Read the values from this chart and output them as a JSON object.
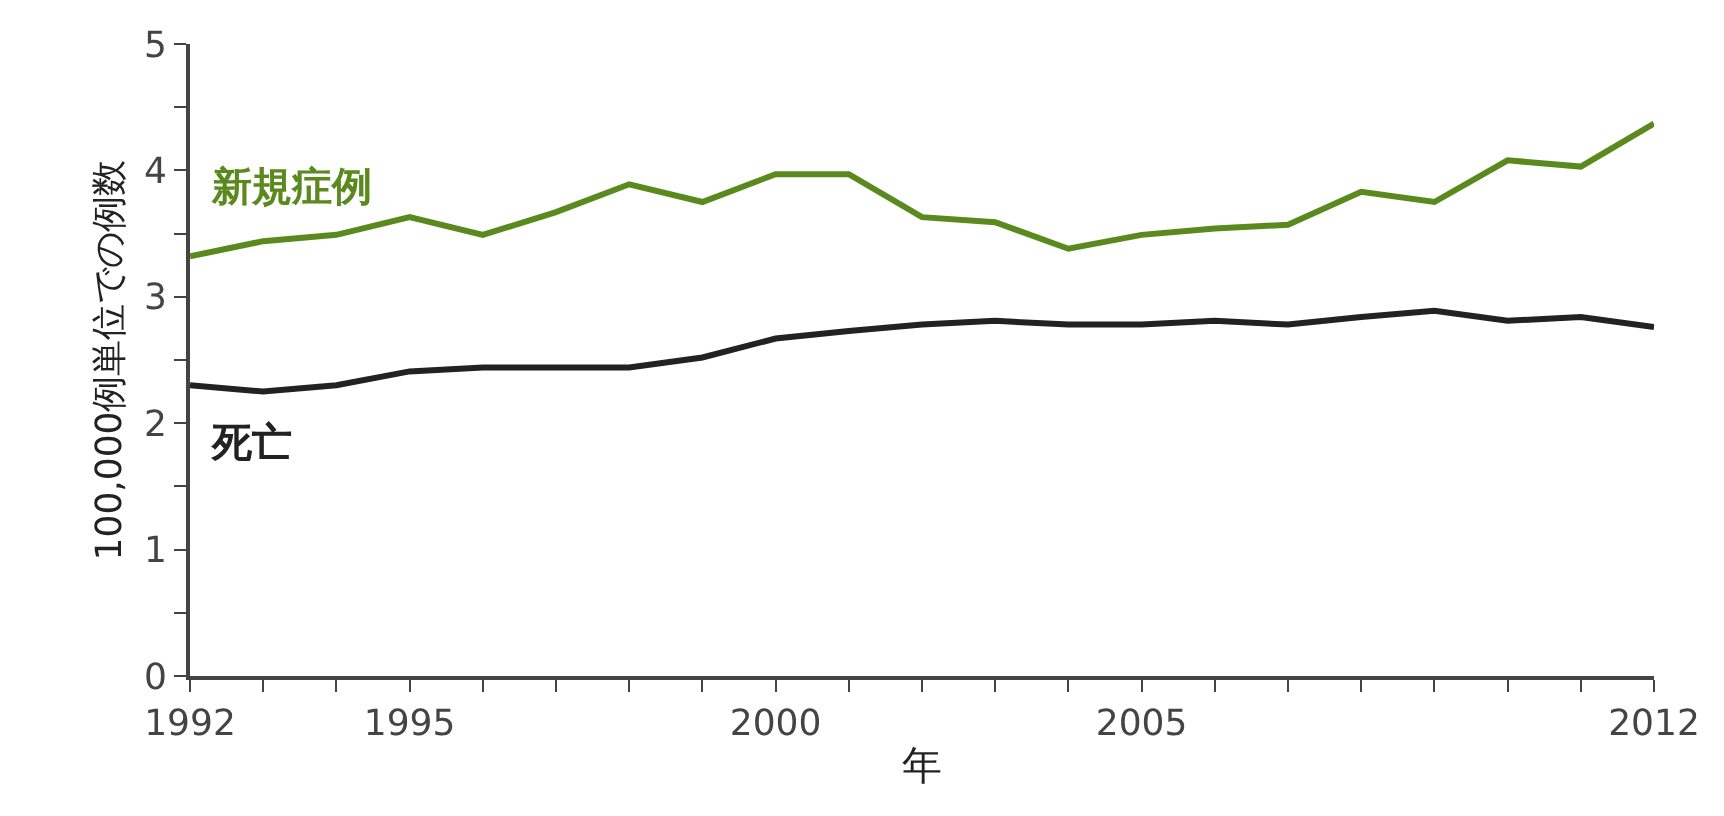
{
  "chart_data": {
    "type": "line",
    "xlabel": "年",
    "ylabel": "100,000例単位での例数",
    "x": [
      1992,
      1993,
      1994,
      1995,
      1996,
      1997,
      1998,
      1999,
      2000,
      2001,
      2002,
      2003,
      2004,
      2005,
      2006,
      2007,
      2008,
      2009,
      2010,
      2011,
      2012
    ],
    "series": [
      {
        "name": "新規症例",
        "color": "#5a8a1e",
        "values": [
          3.32,
          3.44,
          3.49,
          3.63,
          3.49,
          3.67,
          3.89,
          3.75,
          3.97,
          3.97,
          3.63,
          3.59,
          3.38,
          3.49,
          3.54,
          3.57,
          3.83,
          3.75,
          4.08,
          4.03,
          4.37
        ]
      },
      {
        "name": "死亡",
        "color": "#222222",
        "values": [
          2.3,
          2.25,
          2.3,
          2.41,
          2.44,
          2.44,
          2.44,
          2.52,
          2.67,
          2.73,
          2.78,
          2.81,
          2.78,
          2.78,
          2.81,
          2.78,
          2.84,
          2.89,
          2.81,
          2.84,
          2.76
        ]
      }
    ],
    "xlim": [
      1992,
      2012
    ],
    "xticks": [
      1992,
      {
        "value": 1993,
        "label": null
      },
      {
        "value": 1994,
        "label": null
      },
      1995,
      {
        "value": 1996,
        "label": null
      },
      {
        "value": 1997,
        "label": null
      },
      {
        "value": 1998,
        "label": null
      },
      {
        "value": 1999,
        "label": null
      },
      2000,
      {
        "value": 2001,
        "label": null
      },
      {
        "value": 2002,
        "label": null
      },
      {
        "value": 2003,
        "label": null
      },
      {
        "value": 2004,
        "label": null
      },
      2005,
      {
        "value": 2006,
        "label": null
      },
      {
        "value": 2007,
        "label": null
      },
      {
        "value": 2008,
        "label": null
      },
      {
        "value": 2009,
        "label": null
      },
      {
        "value": 2010,
        "label": null
      },
      {
        "value": 2011,
        "label": null
      },
      2012
    ],
    "ylim": [
      0,
      5
    ],
    "yticks": [
      0,
      {
        "value": 0.5,
        "label": null
      },
      1,
      {
        "value": 1.5,
        "label": null
      },
      2,
      {
        "value": 2.5,
        "label": null
      },
      3,
      {
        "value": 3.5,
        "label": null
      },
      4,
      {
        "value": 4.5,
        "label": null
      },
      5
    ],
    "legend": false,
    "marker": "none",
    "line_style": "solid"
  }
}
